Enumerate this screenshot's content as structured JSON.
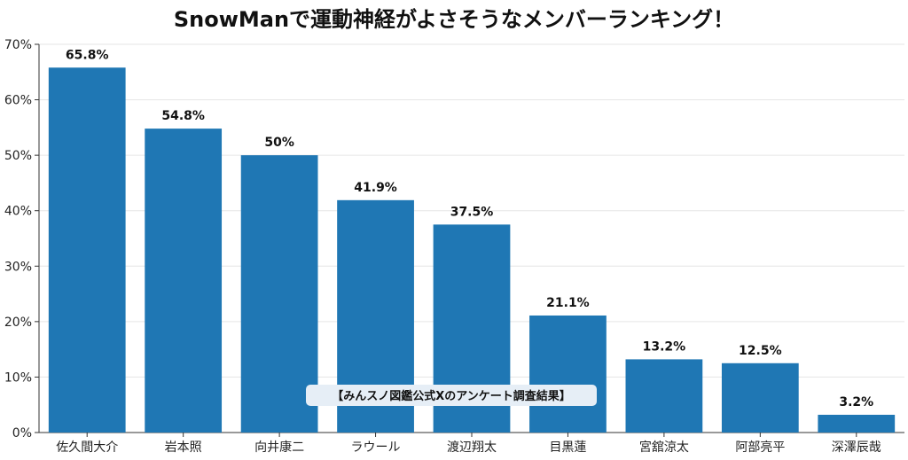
{
  "chart_data": {
    "type": "bar",
    "title": "SnowManで運動神経がよさそうなメンバーランキング！",
    "xlabel": "",
    "ylabel": "",
    "categories": [
      "佐久間大介",
      "岩本照",
      "向井康二",
      "ラウール",
      "渡辺翔太",
      "目黒蓮",
      "宮舘涼太",
      "阿部亮平",
      "深澤辰哉"
    ],
    "values": [
      65.8,
      54.8,
      50,
      41.9,
      37.5,
      21.1,
      13.2,
      12.5,
      3.2
    ],
    "value_labels": [
      "65.8%",
      "54.8%",
      "50%",
      "41.9%",
      "37.5%",
      "21.1%",
      "13.2%",
      "12.5%",
      "3.2%"
    ],
    "ylim": [
      0,
      70
    ],
    "y_ticks": [
      0,
      10,
      20,
      30,
      40,
      50,
      60,
      70
    ],
    "y_tick_labels": [
      "0%",
      "10%",
      "20%",
      "30%",
      "40%",
      "50%",
      "60%",
      "70%"
    ],
    "grid": true,
    "bar_color": "#1f77b4",
    "annotation": "【みんスノ図鑑公式Xのアンケート調査結果】"
  }
}
